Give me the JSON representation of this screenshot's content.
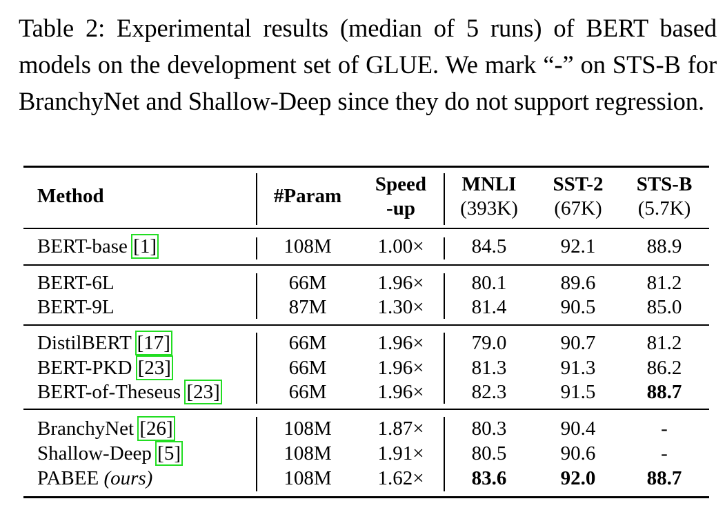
{
  "caption": "Table 2: Experimental results (median of 5 runs) of BERT based models on the development set of GLUE. We mark “-” on STS-B for BranchyNet and Shallow-Deep since they do not support regression.",
  "header": {
    "method": "Method",
    "param": "#Param",
    "speed_1": "Speed",
    "speed_2": "-up",
    "mnli": "MNLI",
    "mnli_sub": "(393K)",
    "sst2": "SST-2",
    "sst2_sub": "(67K)",
    "stsb": "STS-B",
    "stsb_sub": "(5.7K)"
  },
  "rows": [
    {
      "method": "BERT-base ",
      "cite": "[1]",
      "suffix": "",
      "param": "108M",
      "speed": "1.00×",
      "mnli": "84.5",
      "sst2": "92.1",
      "stsb": "88.9",
      "bold": []
    },
    {
      "method": "BERT-6L",
      "cite": "",
      "suffix": "",
      "param": "66M",
      "speed": "1.96×",
      "mnli": "80.1",
      "sst2": "89.6",
      "stsb": "81.2",
      "bold": []
    },
    {
      "method": "BERT-9L",
      "cite": "",
      "suffix": "",
      "param": "87M",
      "speed": "1.30×",
      "mnli": "81.4",
      "sst2": "90.5",
      "stsb": "85.0",
      "bold": []
    },
    {
      "method": "DistilBERT ",
      "cite": "[17]",
      "suffix": "",
      "param": "66M",
      "speed": "1.96×",
      "mnli": "79.0",
      "sst2": "90.7",
      "stsb": "81.2",
      "bold": []
    },
    {
      "method": "BERT-PKD ",
      "cite": "[23]",
      "suffix": "",
      "param": "66M",
      "speed": "1.96×",
      "mnli": "81.3",
      "sst2": "91.3",
      "stsb": "86.2",
      "bold": []
    },
    {
      "method": "BERT-of-Theseus ",
      "cite": "[23]",
      "suffix": "",
      "param": "66M",
      "speed": "1.96×",
      "mnli": "82.3",
      "sst2": "91.5",
      "stsb": "88.7",
      "bold": [
        "stsb"
      ]
    },
    {
      "method": "BranchyNet ",
      "cite": "[26]",
      "suffix": "",
      "param": "108M",
      "speed": "1.87×",
      "mnli": "80.3",
      "sst2": "90.4",
      "stsb": "-",
      "bold": []
    },
    {
      "method": "Shallow-Deep ",
      "cite": "[5]",
      "suffix": "",
      "param": "108M",
      "speed": "1.91×",
      "mnli": "80.5",
      "sst2": "90.6",
      "stsb": "-",
      "bold": []
    },
    {
      "method": "PABEE ",
      "cite": "",
      "suffix": "(ours)",
      "param": "108M",
      "speed": "1.62×",
      "mnli": "83.6",
      "sst2": "92.0",
      "stsb": "88.7",
      "bold": [
        "mnli",
        "sst2",
        "stsb"
      ]
    }
  ]
}
